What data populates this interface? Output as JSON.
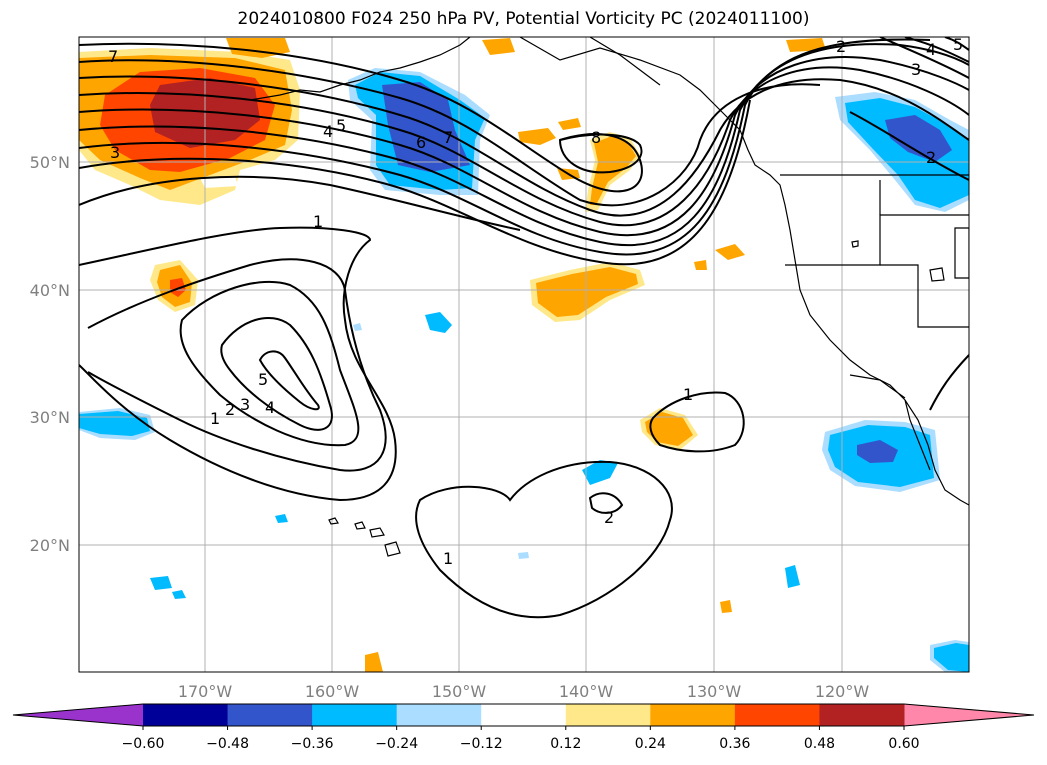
{
  "title": "2024010800 F024 250 hPa PV, Potential Vorticity PC (2024011100)",
  "lat_labels": [
    "50°N",
    "40°N",
    "30°N",
    "20°N"
  ],
  "lon_labels": [
    "170°W",
    "160°W",
    "150°W",
    "140°W",
    "130°W",
    "120°W"
  ],
  "colorbar": {
    "tick_labels": [
      "−0.60",
      "−0.48",
      "−0.36",
      "−0.24",
      "−0.12",
      "0.12",
      "0.24",
      "0.36",
      "0.48",
      "0.60"
    ],
    "colors": [
      "#9933cc",
      "#000099",
      "#3355cc",
      "#00bbff",
      "#aaddff",
      "#ffffff",
      "#ffe88a",
      "#ffa500",
      "#ff4500",
      "#b22222",
      "#ff88aa"
    ]
  },
  "contour_labels": {
    "c7a": "7",
    "c3a": "3",
    "c5a": "5",
    "c4a": "4",
    "c6a": "6",
    "c7b": "7",
    "c8": "8",
    "c2a": "2",
    "c3b": "3",
    "c4b": "4",
    "c5b": "5",
    "c2b": "2",
    "c1a": "1",
    "c5c": "5",
    "c4c": "4",
    "c3c": "3",
    "c2c": "2",
    "c1b": "1",
    "c1c": "1",
    "c2d": "2",
    "c1d": "1"
  }
}
